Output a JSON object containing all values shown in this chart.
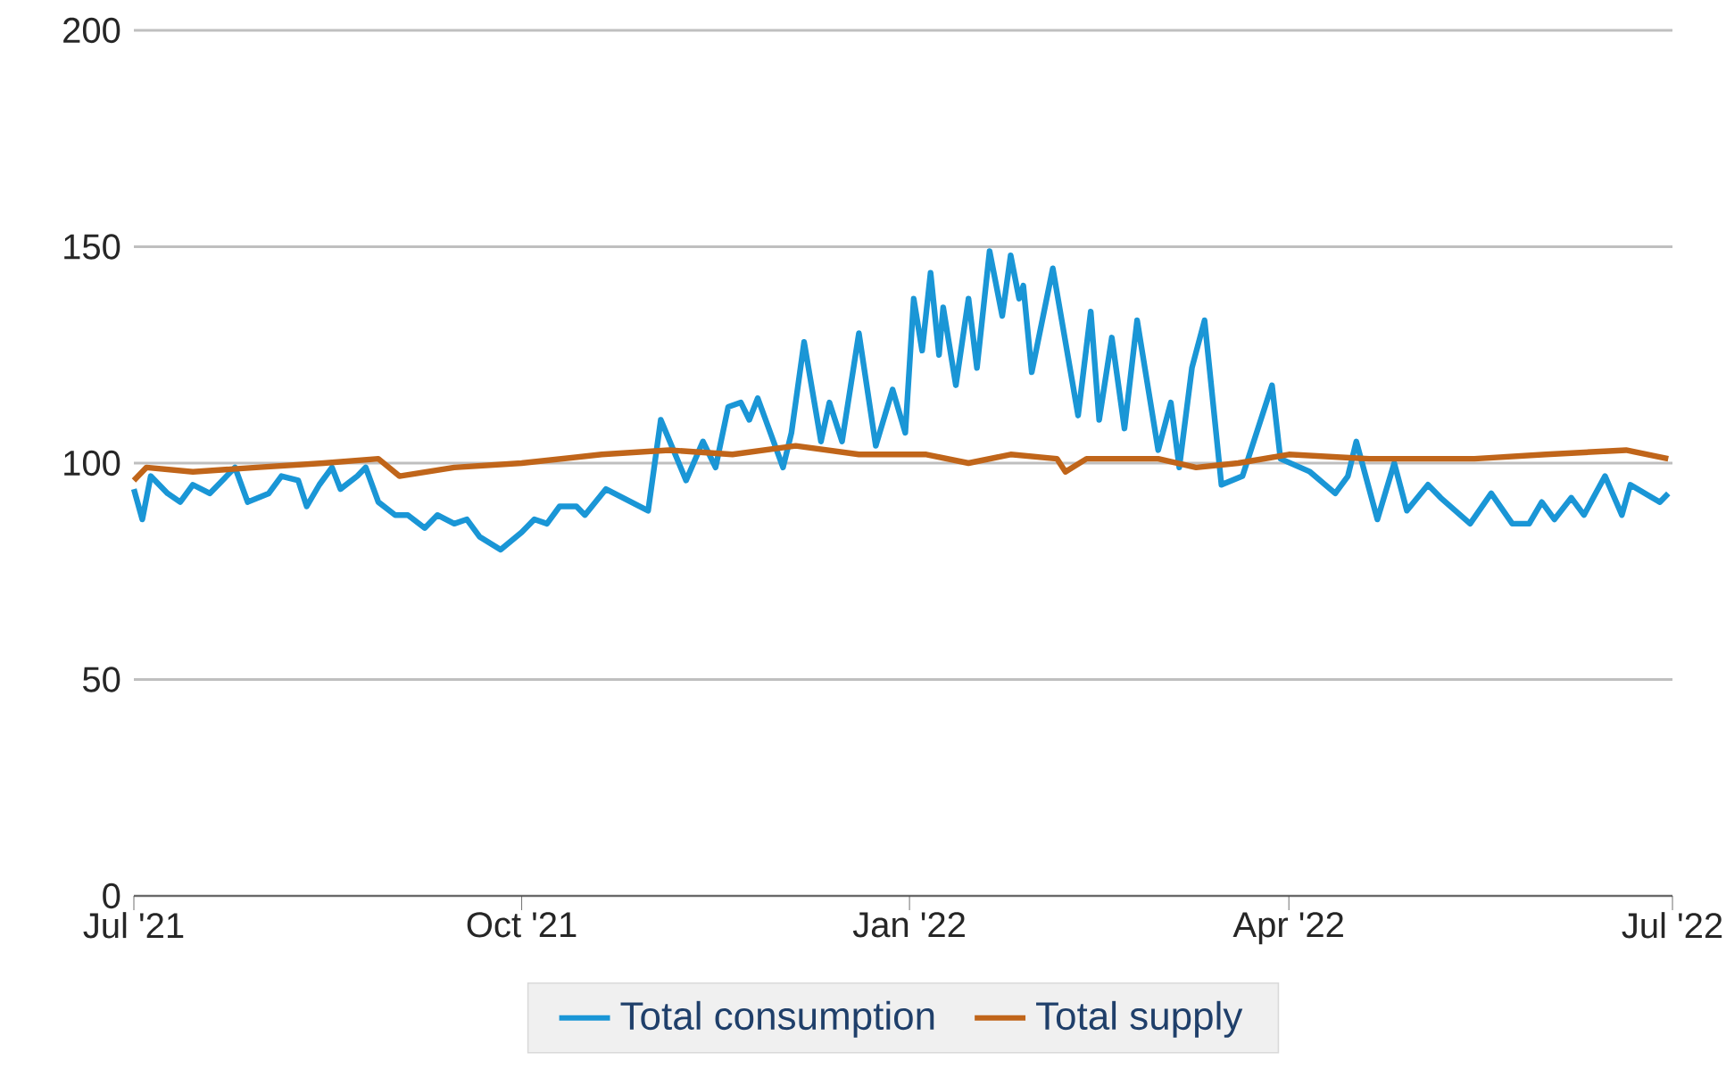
{
  "chart_data": {
    "type": "line",
    "xlim": [
      "2021-07-01",
      "2022-07-01"
    ],
    "xticks": [
      {
        "value": "2021-07-01",
        "label": "Jul '21"
      },
      {
        "value": "2021-10-01",
        "label": "Oct '21"
      },
      {
        "value": "2022-01-01",
        "label": "Jan '22"
      },
      {
        "value": "2022-04-01",
        "label": "Apr '22"
      },
      {
        "value": "2022-07-01",
        "label": "Jul '22"
      }
    ],
    "ylim": [
      0,
      200
    ],
    "yticks": [
      0,
      50,
      100,
      150,
      200
    ],
    "grid": "y",
    "legend": "bottom",
    "marker": "none",
    "line_style": "solid",
    "series": [
      {
        "name": "Total consumption",
        "color": "#1a96d6",
        "x": [
          "2021-07-01",
          "2021-07-03",
          "2021-07-05",
          "2021-07-09",
          "2021-07-12",
          "2021-07-15",
          "2021-07-19",
          "2021-07-22",
          "2021-07-25",
          "2021-07-28",
          "2021-08-02",
          "2021-08-05",
          "2021-08-09",
          "2021-08-11",
          "2021-08-14",
          "2021-08-17",
          "2021-08-19",
          "2021-08-23",
          "2021-08-25",
          "2021-08-28",
          "2021-09-01",
          "2021-09-04",
          "2021-09-08",
          "2021-09-11",
          "2021-09-15",
          "2021-09-18",
          "2021-09-21",
          "2021-09-26",
          "2021-10-01",
          "2021-10-04",
          "2021-10-07",
          "2021-10-10",
          "2021-10-14",
          "2021-10-16",
          "2021-10-21",
          "2021-10-31",
          "2021-11-03",
          "2021-11-09",
          "2021-11-13",
          "2021-11-16",
          "2021-11-19",
          "2021-11-22",
          "2021-11-24",
          "2021-11-26",
          "2021-12-02",
          "2021-12-04",
          "2021-12-07",
          "2021-12-11",
          "2021-12-13",
          "2021-12-16",
          "2021-12-20",
          "2021-12-24",
          "2021-12-28",
          "2021-12-31",
          "2022-01-02",
          "2022-01-04",
          "2022-01-06",
          "2022-01-08",
          "2022-01-09",
          "2022-01-12",
          "2022-01-15",
          "2022-01-17",
          "2022-01-20",
          "2022-01-23",
          "2022-01-25",
          "2022-01-27",
          "2022-01-28",
          "2022-01-30",
          "2022-02-04",
          "2022-02-10",
          "2022-02-13",
          "2022-02-15",
          "2022-02-18",
          "2022-02-21",
          "2022-02-24",
          "2022-03-01",
          "2022-03-04",
          "2022-03-06",
          "2022-03-09",
          "2022-03-12",
          "2022-03-16",
          "2022-03-21",
          "2022-03-23",
          "2022-03-28",
          "2022-03-30",
          "2022-04-06",
          "2022-04-12",
          "2022-04-15",
          "2022-04-17",
          "2022-04-22",
          "2022-04-26",
          "2022-04-29",
          "2022-05-04",
          "2022-05-07",
          "2022-05-14",
          "2022-05-19",
          "2022-05-24",
          "2022-05-28",
          "2022-05-31",
          "2022-06-03",
          "2022-06-07",
          "2022-06-10",
          "2022-06-15",
          "2022-06-19",
          "2022-06-21",
          "2022-06-28",
          "2022-06-30"
        ],
        "values": [
          94,
          87,
          97,
          93,
          91,
          95,
          93,
          96,
          99,
          91,
          93,
          97,
          96,
          90,
          95,
          99,
          94,
          97,
          99,
          91,
          88,
          88,
          85,
          88,
          86,
          87,
          83,
          80,
          84,
          87,
          86,
          90,
          90,
          88,
          94,
          89,
          110,
          96,
          105,
          99,
          113,
          114,
          110,
          115,
          99,
          107,
          128,
          105,
          114,
          105,
          130,
          104,
          117,
          107,
          138,
          126,
          144,
          125,
          136,
          118,
          138,
          122,
          149,
          134,
          148,
          138,
          141,
          121,
          145,
          111,
          135,
          110,
          129,
          108,
          133,
          103,
          114,
          99,
          122,
          133,
          95,
          97,
          103,
          118,
          101,
          98,
          93,
          97,
          105,
          87,
          100,
          89,
          95,
          92,
          86,
          93,
          86,
          86,
          91,
          87,
          92,
          88,
          97,
          88,
          95,
          91,
          93
        ]
      },
      {
        "name": "Total supply",
        "color": "#c0651a",
        "x": [
          "2021-07-01",
          "2021-07-04",
          "2021-07-15",
          "2021-07-30",
          "2021-08-15",
          "2021-08-28",
          "2021-09-02",
          "2021-09-15",
          "2021-10-01",
          "2021-10-20",
          "2021-11-05",
          "2021-11-20",
          "2021-12-05",
          "2021-12-20",
          "2022-01-05",
          "2022-01-15",
          "2022-01-25",
          "2022-02-05",
          "2022-02-07",
          "2022-02-12",
          "2022-03-01",
          "2022-03-10",
          "2022-03-20",
          "2022-04-01",
          "2022-04-20",
          "2022-05-15",
          "2022-06-01",
          "2022-06-20",
          "2022-06-30"
        ],
        "values": [
          96,
          99,
          98,
          99,
          100,
          101,
          97,
          99,
          100,
          102,
          103,
          102,
          104,
          102,
          102,
          100,
          102,
          101,
          98,
          101,
          101,
          99,
          100,
          102,
          101,
          101,
          102,
          103,
          101
        ]
      }
    ]
  }
}
